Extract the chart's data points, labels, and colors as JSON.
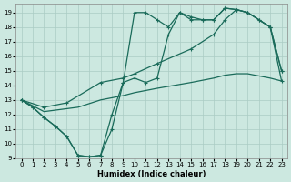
{
  "background_color": "#cce8e0",
  "grid_color": "#aaccc4",
  "line_color": "#1a6b5a",
  "xlabel": "Humidex (Indice chaleur)",
  "xlim": [
    -0.5,
    23.5
  ],
  "ylim": [
    9,
    19.6
  ],
  "yticks": [
    9,
    10,
    11,
    12,
    13,
    14,
    15,
    16,
    17,
    18,
    19
  ],
  "xticks": [
    0,
    1,
    2,
    3,
    4,
    5,
    6,
    7,
    8,
    9,
    10,
    11,
    12,
    13,
    14,
    15,
    16,
    17,
    18,
    19,
    20,
    21,
    22,
    23
  ],
  "line1_x": [
    0,
    1,
    2,
    3,
    4,
    5,
    6,
    7,
    8,
    9,
    10,
    11,
    12,
    13,
    14,
    15,
    16,
    17,
    18,
    19,
    20,
    21,
    22,
    23
  ],
  "line1_y": [
    13,
    12.5,
    11.8,
    11.2,
    10.5,
    9.2,
    9.1,
    9.2,
    11.0,
    14.2,
    19.0,
    19.0,
    18.5,
    18.0,
    19.0,
    18.5,
    18.5,
    18.5,
    19.3,
    19.2,
    19.0,
    18.5,
    18.0,
    15.0
  ],
  "line2_x": [
    0,
    1,
    2,
    3,
    4,
    5,
    6,
    7,
    8,
    9,
    10,
    11,
    12,
    13,
    14,
    15,
    16,
    17,
    18,
    19,
    20,
    21,
    22,
    23
  ],
  "line2_y": [
    13,
    12.5,
    11.8,
    11.2,
    10.5,
    9.2,
    9.1,
    9.2,
    12.0,
    14.2,
    14.5,
    14.2,
    14.5,
    17.5,
    19.0,
    18.7,
    18.5,
    18.5,
    19.3,
    19.2,
    19.0,
    18.5,
    18.0,
    15.0
  ],
  "line3_x": [
    0,
    2,
    4,
    7,
    9,
    10,
    12,
    15,
    17,
    18,
    19,
    20,
    22,
    23
  ],
  "line3_y": [
    13,
    12.5,
    12.8,
    14.2,
    14.5,
    14.8,
    15.5,
    16.5,
    17.5,
    18.5,
    19.2,
    19.0,
    18.0,
    14.3
  ],
  "line4_x": [
    0,
    2,
    5,
    7,
    9,
    10,
    12,
    15,
    17,
    18,
    19,
    20,
    22,
    23
  ],
  "line4_y": [
    13,
    12.2,
    12.5,
    13.0,
    13.3,
    13.5,
    13.8,
    14.2,
    14.5,
    14.7,
    14.8,
    14.8,
    14.5,
    14.3
  ]
}
